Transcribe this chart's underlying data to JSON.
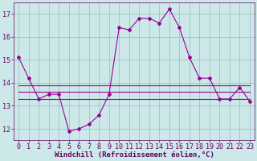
{
  "xlabel": "Windchill (Refroidissement éolien,°C)",
  "x": [
    0,
    1,
    2,
    3,
    4,
    5,
    6,
    7,
    8,
    9,
    10,
    11,
    12,
    13,
    14,
    15,
    16,
    17,
    18,
    19,
    20,
    21,
    22,
    23
  ],
  "main_line": [
    15.1,
    14.2,
    13.3,
    13.5,
    13.5,
    11.9,
    12.0,
    12.2,
    12.6,
    13.5,
    16.4,
    16.3,
    16.8,
    16.8,
    16.6,
    17.2,
    16.4,
    15.1,
    14.2,
    14.2,
    13.3,
    13.3,
    13.8,
    13.2
  ],
  "flat_line1": [
    13.3,
    13.3,
    13.3,
    13.3,
    13.3,
    13.3,
    13.3,
    13.3,
    13.3,
    13.3,
    13.3,
    13.3,
    13.3,
    13.3,
    13.3,
    13.3,
    13.3,
    13.3,
    13.3,
    13.3,
    13.3,
    13.3,
    13.3,
    13.3
  ],
  "flat_line2": [
    13.6,
    13.6,
    13.6,
    13.6,
    13.6,
    13.6,
    13.6,
    13.6,
    13.6,
    13.6,
    13.6,
    13.6,
    13.6,
    13.6,
    13.6,
    13.6,
    13.6,
    13.6,
    13.6,
    13.6,
    13.6,
    13.6,
    13.6,
    13.6
  ],
  "flat_line3": [
    13.9,
    13.9,
    13.9,
    13.9,
    13.9,
    13.9,
    13.9,
    13.9,
    13.9,
    13.9,
    13.9,
    13.9,
    13.9,
    13.9,
    13.9,
    13.9,
    13.9,
    13.9,
    13.9,
    13.9,
    13.9,
    13.9,
    13.9,
    13.9
  ],
  "ylim": [
    11.5,
    17.5
  ],
  "yticks": [
    12,
    13,
    14,
    15,
    16,
    17
  ],
  "xticks": [
    0,
    1,
    2,
    3,
    4,
    5,
    6,
    7,
    8,
    9,
    10,
    11,
    12,
    13,
    14,
    15,
    16,
    17,
    18,
    19,
    20,
    21,
    22,
    23
  ],
  "line_color": "#990099",
  "bg_color": "#cce8e8",
  "grid_color": "#99bbbb",
  "font_color": "#660066",
  "marker": "D",
  "markersize": 2.0,
  "linewidth": 0.8,
  "xlabel_fontsize": 6.5,
  "tick_fontsize": 6.0
}
